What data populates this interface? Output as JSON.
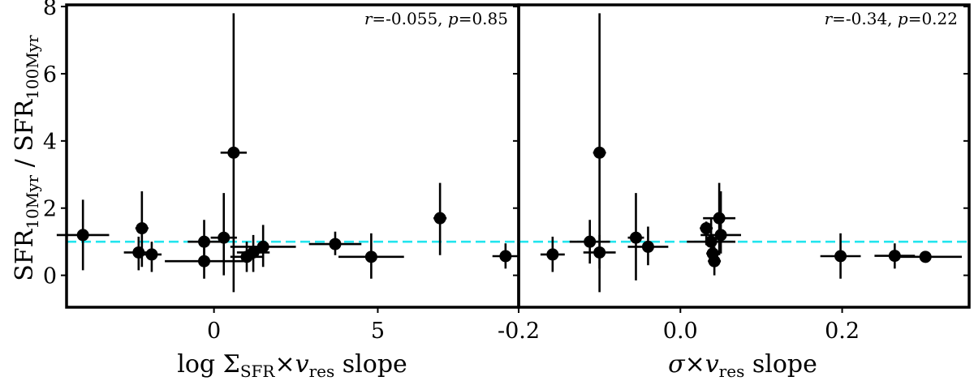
{
  "chart_data": [
    {
      "type": "scatter",
      "ylabel_main": "SFR",
      "ylabel_sub1": "10Myr",
      "ylabel_sep": " / SFR",
      "ylabel_sub2": "100Myr",
      "xlabel_pre": "log Σ",
      "xlabel_sub1": "SFR",
      "xlabel_mid": "×",
      "xlabel_v": "v",
      "xlabel_sub2": "res",
      "xlabel_post": " slope",
      "annotation": {
        "r_label": "r",
        "r_value": "=-0.055, ",
        "p_label": "p",
        "p_value": "=0.85"
      },
      "xlim": [
        -4.5,
        9.3
      ],
      "ylim": [
        -0.95,
        8.05
      ],
      "xticks": [
        0,
        5
      ],
      "xtick_labels": [
        "0",
        "5"
      ],
      "yticks": [
        0,
        2,
        4,
        6,
        8
      ],
      "ytick_labels": [
        "0",
        "2",
        "4",
        "6",
        "8"
      ],
      "reference_line_y": 1.0,
      "reference_line_color": "#22e5ee",
      "points": [
        {
          "x": -4.0,
          "y": 1.2,
          "xerr": 0.8,
          "ylo": 0.15,
          "yhi": 2.25
        },
        {
          "x": -2.2,
          "y": 1.4,
          "xerr": 0.2,
          "ylo": 0.25,
          "yhi": 2.5
        },
        {
          "x": -2.3,
          "y": 0.68,
          "xerr": 0.45,
          "ylo": 0.15,
          "yhi": 1.15
        },
        {
          "x": -1.9,
          "y": 0.62,
          "xerr": 0.3,
          "ylo": 0.1,
          "yhi": 1.0
        },
        {
          "x": -0.3,
          "y": 1.0,
          "xerr": 0.5,
          "ylo": 0.4,
          "yhi": 1.65
        },
        {
          "x": -0.3,
          "y": 0.42,
          "xerr": 1.2,
          "ylo": -0.1,
          "yhi": 0.95
        },
        {
          "x": 0.3,
          "y": 1.12,
          "xerr": 0.4,
          "ylo": 0.0,
          "yhi": 2.45
        },
        {
          "x": 0.6,
          "y": 3.65,
          "xerr": 0.4,
          "ylo": -0.5,
          "yhi": 7.8
        },
        {
          "x": 1.0,
          "y": 0.55,
          "xerr": 0.5,
          "ylo": 0.1,
          "yhi": 1.0
        },
        {
          "x": 1.2,
          "y": 0.68,
          "xerr": 0.5,
          "ylo": 0.1,
          "yhi": 1.2
        },
        {
          "x": 1.5,
          "y": 0.85,
          "xerr": 1.0,
          "ylo": 0.25,
          "yhi": 1.5
        },
        {
          "x": 3.7,
          "y": 0.93,
          "xerr": 0.8,
          "ylo": 0.6,
          "yhi": 1.3
        },
        {
          "x": 4.8,
          "y": 0.55,
          "xerr": 1.0,
          "ylo": -0.1,
          "yhi": 1.25
        },
        {
          "x": 6.9,
          "y": 1.7,
          "xerr": 0.2,
          "ylo": 0.6,
          "yhi": 2.75
        },
        {
          "x": 8.9,
          "y": 0.57,
          "xerr": 0.4,
          "ylo": 0.2,
          "yhi": 0.95
        }
      ]
    },
    {
      "type": "scatter",
      "xlabel_pre": "σ",
      "xlabel_mid": "×",
      "xlabel_v": "v",
      "xlabel_sub2": "res",
      "xlabel_post": " slope",
      "annotation": {
        "r_label": "r",
        "r_value": "=-0.34, ",
        "p_label": "p",
        "p_value": "=0.22"
      },
      "xlim": [
        -0.2,
        0.357
      ],
      "ylim": [
        -0.95,
        8.05
      ],
      "xticks": [
        -0.2,
        0.0,
        0.2
      ],
      "xtick_labels": [
        "-0.2",
        "0.0",
        "0.2"
      ],
      "yticks": [
        0,
        2,
        4,
        6,
        8
      ],
      "reference_line_y": 1.0,
      "reference_line_color": "#22e5ee",
      "points": [
        {
          "x": -0.158,
          "y": 0.62,
          "xerr": 0.015,
          "ylo": 0.1,
          "yhi": 1.15
        },
        {
          "x": -0.112,
          "y": 1.0,
          "xerr": 0.025,
          "ylo": 0.35,
          "yhi": 1.65
        },
        {
          "x": -0.1,
          "y": 3.65,
          "xerr": 0.008,
          "ylo": -0.5,
          "yhi": 7.8
        },
        {
          "x": -0.1,
          "y": 0.68,
          "xerr": 0.02,
          "ylo": 0.2,
          "yhi": 1.2
        },
        {
          "x": -0.055,
          "y": 1.12,
          "xerr": 0.01,
          "ylo": -0.15,
          "yhi": 2.45
        },
        {
          "x": -0.04,
          "y": 0.85,
          "xerr": 0.025,
          "ylo": 0.3,
          "yhi": 1.45
        },
        {
          "x": 0.032,
          "y": 1.4,
          "xerr": 0.008,
          "ylo": 0.9,
          "yhi": 1.6
        },
        {
          "x": 0.038,
          "y": 1.0,
          "xerr": 0.03,
          "ylo": 0.3,
          "yhi": 1.7
        },
        {
          "x": 0.04,
          "y": 0.65,
          "xerr": 0.008,
          "ylo": 0.3,
          "yhi": 1.0
        },
        {
          "x": 0.042,
          "y": 0.42,
          "xerr": 0.008,
          "ylo": 0.0,
          "yhi": 0.85
        },
        {
          "x": 0.048,
          "y": 1.7,
          "xerr": 0.02,
          "ylo": 0.6,
          "yhi": 2.75
        },
        {
          "x": 0.05,
          "y": 1.2,
          "xerr": 0.025,
          "ylo": 0.65,
          "yhi": 2.5
        },
        {
          "x": 0.198,
          "y": 0.57,
          "xerr": 0.025,
          "ylo": -0.1,
          "yhi": 1.25
        },
        {
          "x": 0.265,
          "y": 0.58,
          "xerr": 0.025,
          "ylo": 0.2,
          "yhi": 0.95
        },
        {
          "x": 0.303,
          "y": 0.55,
          "xerr": 0.045,
          "ylo": 0.55,
          "yhi": 0.55
        }
      ]
    }
  ]
}
